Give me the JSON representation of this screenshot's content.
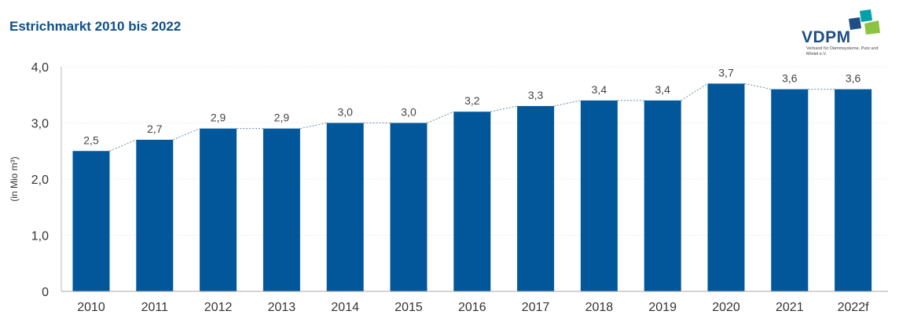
{
  "title": "Estrichmarkt 2010 bis 2022",
  "logo": {
    "name": "VDPM",
    "subtitle": "Verband für Dämmsysteme, Putz und Mörtel e.V.",
    "colors": [
      "#00a0a8",
      "#8cc43f",
      "#1f4e86"
    ]
  },
  "chart_data": {
    "type": "bar",
    "categories": [
      "2010",
      "2011",
      "2012",
      "2013",
      "2014",
      "2015",
      "2016",
      "2017",
      "2018",
      "2019",
      "2020",
      "2021",
      "2022f"
    ],
    "values": [
      2.5,
      2.7,
      2.9,
      2.9,
      3.0,
      3.0,
      3.2,
      3.3,
      3.4,
      3.4,
      3.7,
      3.6,
      3.6
    ],
    "value_labels": [
      "2,5",
      "2,7",
      "2,9",
      "2,9",
      "3,0",
      "3,0",
      "3,2",
      "3,3",
      "3,4",
      "3,4",
      "3,7",
      "3,6",
      "3,6"
    ],
    "ylabel": "(in Mio m³)",
    "ylim": [
      0,
      4
    ],
    "yticks": [
      0,
      1,
      2,
      3,
      4
    ],
    "ytick_labels": [
      "0",
      "1,0",
      "2,0",
      "3,0",
      "4,0"
    ],
    "grid": true,
    "connector_lines": "dashed",
    "bar_color": "#02579a"
  }
}
